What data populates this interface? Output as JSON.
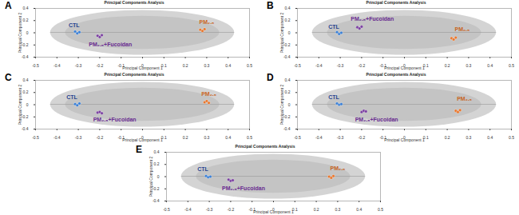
{
  "chart_data": [
    {
      "type": "scatter",
      "panel": "A",
      "title": "Principal Components Analysis",
      "xlabel": "Principal Component 1",
      "ylabel": "Principal Component 2",
      "xlim": [
        -0.5,
        0.5
      ],
      "xticks": [
        -0.5,
        -0.4,
        -0.3,
        -0.2,
        -0.1,
        0,
        0.1,
        0.2,
        0.3,
        0.4,
        0.5
      ],
      "ylim": [
        -0.4,
        0.4
      ],
      "yticks": [
        -0.4,
        -0.2,
        0,
        0.2,
        0.4
      ],
      "grid": false,
      "marker": "circle",
      "series": [
        {
          "name": "CTL",
          "color": "#3a7fd5",
          "x": [
            -0.315,
            -0.305,
            -0.295
          ],
          "y": [
            0.02,
            -0.01,
            0.01
          ]
        },
        {
          "name": "PM₂.₅+Fucoidan",
          "color": "#7a3fa0",
          "x": [
            -0.21,
            -0.2,
            -0.19
          ],
          "y": [
            -0.05,
            -0.07,
            -0.04
          ]
        },
        {
          "name": "PM₂.₅",
          "color": "#e8762d",
          "x": [
            0.27,
            0.28,
            0.29
          ],
          "y": [
            0.05,
            0.03,
            0.06
          ]
        }
      ],
      "annotations": [
        {
          "text": "CTL",
          "x": -0.32,
          "y": 0.12,
          "color": "#1f3f8f"
        },
        {
          "text": "PM₂.₅+Fucoidan",
          "x": -0.15,
          "y": -0.19,
          "color": "#6a2c91"
        },
        {
          "text": "PM₂.₅",
          "x": 0.3,
          "y": 0.17,
          "color": "#c8641e"
        }
      ]
    },
    {
      "type": "scatter",
      "panel": "B",
      "title": "Principal Components Analysis",
      "xlabel": "Principal Component 1",
      "ylabel": "Principal Component 2",
      "xlim": [
        -0.5,
        0.5
      ],
      "xticks": [
        -0.5,
        -0.4,
        -0.3,
        -0.2,
        -0.1,
        0,
        0.1,
        0.2,
        0.3,
        0.4,
        0.5
      ],
      "ylim": [
        -0.4,
        0.4
      ],
      "yticks": [
        -0.4,
        -0.2,
        0,
        0.2,
        0.4
      ],
      "grid": false,
      "marker": "circle",
      "series": [
        {
          "name": "CTL",
          "color": "#3a7fd5",
          "x": [
            -0.315,
            -0.305,
            -0.295
          ],
          "y": [
            0.01,
            -0.02,
            0.0
          ]
        },
        {
          "name": "PM₂.₅+Fucoidan",
          "color": "#7a3fa0",
          "x": [
            -0.22,
            -0.21,
            -0.2
          ],
          "y": [
            0.09,
            0.07,
            0.1
          ]
        },
        {
          "name": "PM₂.₅",
          "color": "#e8762d",
          "x": [
            0.22,
            0.23,
            0.24
          ],
          "y": [
            -0.09,
            -0.11,
            -0.08
          ]
        }
      ],
      "annotations": [
        {
          "text": "CTL",
          "x": -0.33,
          "y": 0.1,
          "color": "#1f3f8f"
        },
        {
          "text": "PM₂.₅+Fucoidan",
          "x": -0.15,
          "y": 0.22,
          "color": "#6a2c91"
        },
        {
          "text": "PM₂.₅",
          "x": 0.27,
          "y": 0.06,
          "color": "#c8641e"
        }
      ]
    },
    {
      "type": "scatter",
      "panel": "C",
      "title": "Principal Components Analysis",
      "xlabel": "Principal Component 1",
      "ylabel": "Principal Component 2",
      "xlim": [
        -0.5,
        0.5
      ],
      "xticks": [
        -0.5,
        -0.4,
        -0.3,
        -0.2,
        -0.1,
        0,
        0.1,
        0.2,
        0.3,
        0.4,
        0.5
      ],
      "ylim": [
        -0.4,
        0.4
      ],
      "yticks": [
        -0.4,
        -0.2,
        0,
        0.2,
        0.4
      ],
      "grid": false,
      "marker": "circle",
      "series": [
        {
          "name": "CTL",
          "color": "#3a7fd5",
          "x": [
            -0.315,
            -0.305,
            -0.295
          ],
          "y": [
            0.01,
            -0.01,
            0.02
          ]
        },
        {
          "name": "PM₂.₅+Fucoidan",
          "color": "#7a3fa0",
          "x": [
            -0.21,
            -0.2,
            -0.19
          ],
          "y": [
            -0.13,
            -0.12,
            -0.14
          ]
        },
        {
          "name": "PM₂.₅",
          "color": "#e8762d",
          "x": [
            0.29,
            0.3,
            0.31
          ],
          "y": [
            0.04,
            0.06,
            0.03
          ]
        }
      ],
      "annotations": [
        {
          "text": "CTL",
          "x": -0.33,
          "y": 0.12,
          "color": "#1f3f8f"
        },
        {
          "text": "PM₂.₅+Fucoidan",
          "x": -0.13,
          "y": -0.25,
          "color": "#6a2c91"
        },
        {
          "text": "PM₂.₅",
          "x": 0.31,
          "y": 0.18,
          "color": "#c8641e"
        }
      ]
    },
    {
      "type": "scatter",
      "panel": "D",
      "title": "Principal Components Analysis",
      "xlabel": "Principal Component 1",
      "ylabel": "Principal Component 2",
      "xlim": [
        -0.5,
        0.5
      ],
      "xticks": [
        -0.5,
        -0.4,
        -0.3,
        -0.2,
        -0.1,
        0,
        0.1,
        0.2,
        0.3,
        0.4,
        0.5
      ],
      "ylim": [
        -0.4,
        0.4
      ],
      "yticks": [
        -0.4,
        -0.2,
        0,
        0.2,
        0.4
      ],
      "grid": false,
      "marker": "circle",
      "series": [
        {
          "name": "CTL",
          "color": "#3a7fd5",
          "x": [
            -0.315,
            -0.305,
            -0.295
          ],
          "y": [
            0.02,
            0.0,
            0.01
          ]
        },
        {
          "name": "PM₂.₅+Fucoidan",
          "color": "#7a3fa0",
          "x": [
            -0.2,
            -0.19,
            -0.18
          ],
          "y": [
            -0.12,
            -0.1,
            -0.11
          ]
        },
        {
          "name": "PM₂.₅",
          "color": "#e8762d",
          "x": [
            0.24,
            0.25,
            0.26
          ],
          "y": [
            -0.1,
            -0.12,
            -0.09
          ]
        }
      ],
      "annotations": [
        {
          "text": "CTL",
          "x": -0.33,
          "y": 0.12,
          "color": "#1f3f8f"
        },
        {
          "text": "PM₂.₅+Fucoidan",
          "x": -0.13,
          "y": -0.24,
          "color": "#6a2c91"
        },
        {
          "text": "PM₂.₅",
          "x": 0.28,
          "y": 0.1,
          "color": "#c8641e"
        }
      ]
    },
    {
      "type": "scatter",
      "panel": "E",
      "title": "Principal Components Analysis",
      "xlabel": "Principal Component 1",
      "ylabel": "Principal Component 2",
      "xlim": [
        -0.5,
        0.5
      ],
      "xticks": [
        -0.5,
        -0.4,
        -0.3,
        -0.2,
        -0.1,
        0,
        0.1,
        0.2,
        0.3,
        0.4,
        0.5
      ],
      "ylim": [
        -0.4,
        0.4
      ],
      "yticks": [
        -0.4,
        -0.2,
        0,
        0.2,
        0.4
      ],
      "grid": false,
      "marker": "circle",
      "series": [
        {
          "name": "CTL",
          "color": "#3a7fd5",
          "x": [
            -0.315,
            -0.305,
            -0.295
          ],
          "y": [
            0.01,
            -0.01,
            0.0
          ]
        },
        {
          "name": "PM₂.₅+Fucoidan",
          "color": "#7a3fa0",
          "x": [
            -0.21,
            -0.2,
            -0.19
          ],
          "y": [
            -0.05,
            -0.07,
            -0.06
          ]
        },
        {
          "name": "PM₂.₅",
          "color": "#e8762d",
          "x": [
            0.26,
            0.27,
            0.28
          ],
          "y": [
            0.0,
            -0.02,
            0.01
          ]
        }
      ],
      "annotations": [
        {
          "text": "CTL",
          "x": -0.33,
          "y": 0.12,
          "color": "#1f3f8f"
        },
        {
          "text": "PM₂.₅+Fucoidan",
          "x": -0.14,
          "y": -0.19,
          "color": "#6a2c91"
        },
        {
          "text": "PM₂.₅",
          "x": 0.3,
          "y": 0.13,
          "color": "#c8641e"
        }
      ]
    }
  ]
}
